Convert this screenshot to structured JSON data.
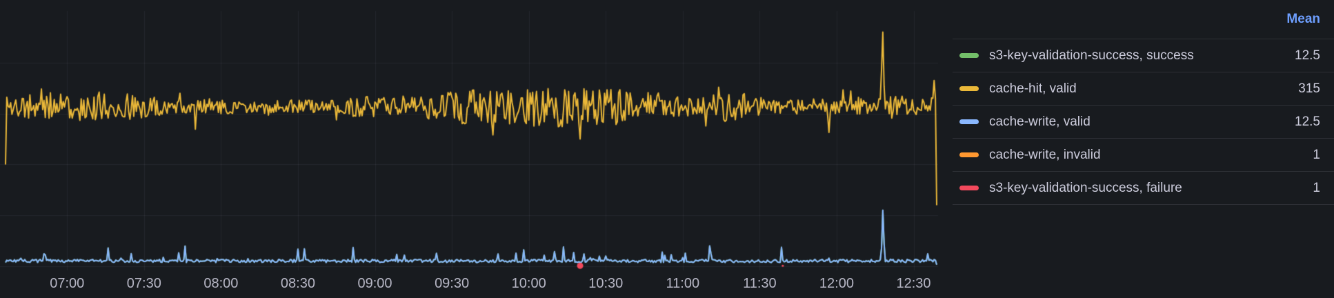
{
  "panel": {
    "background": "#181B1F",
    "grid_color": "rgba(204,204,220,0.07)",
    "axis_text_color": "rgba(204,204,220,0.88)"
  },
  "legend": {
    "mean_header": "Mean",
    "header_color": "#6E9FFF",
    "rows": [
      {
        "label": "s3-key-validation-success, success",
        "mean": "12.5",
        "color": "#73BF69"
      },
      {
        "label": "cache-hit, valid",
        "mean": "315",
        "color": "#EAB839"
      },
      {
        "label": "cache-write, valid",
        "mean": "12.5",
        "color": "#8AB8FF"
      },
      {
        "label": "cache-write, invalid",
        "mean": "1",
        "color": "#FF9830"
      },
      {
        "label": "s3-key-validation-success, failure",
        "mean": "1",
        "color": "#F2495C"
      }
    ]
  },
  "chart_data": {
    "type": "line",
    "title": "",
    "legend_position": "right",
    "x_axis": {
      "start": "06:36",
      "end": "12:39",
      "tick_interval_minutes": 30,
      "ticks": [
        "07:00",
        "07:30",
        "08:00",
        "08:30",
        "09:00",
        "09:30",
        "10:00",
        "10:30",
        "11:00",
        "11:30",
        "12:00",
        "12:30"
      ]
    },
    "y_axis": {
      "min": 0,
      "max": 500,
      "gridline_values": [
        0,
        100,
        200,
        300,
        400
      ],
      "labels_visible": false
    },
    "sample_step_minutes": 0.5,
    "series": [
      {
        "name": "s3-key-validation-success, success",
        "color": "#73BF69",
        "render": "line",
        "mean": 12.5,
        "base": 10.5,
        "noise": 6,
        "seed": 7,
        "spike_chance": 0.06,
        "spike_max": 18,
        "rare_spike_chance": 0.012,
        "rare_spike_max": 15,
        "events": [
          {
            "time": "12:18",
            "value": 110
          }
        ],
        "end_value": 3,
        "hidden_behind": "cache-write, valid"
      },
      {
        "name": "cache-hit, valid",
        "color": "#EAB839",
        "render": "line",
        "mean": 315,
        "base": 313,
        "noise_env_min": 13,
        "noise_env_max": 40,
        "seed": 11,
        "start_value": 200,
        "events": [
          {
            "time": "09:46",
            "value": 258
          },
          {
            "time": "10:20",
            "value": 250
          },
          {
            "time": "12:18",
            "value": 460
          }
        ],
        "end_values": [
          330,
          365,
          330,
          120
        ]
      },
      {
        "name": "cache-write, valid",
        "color": "#8AB8FF",
        "render": "line",
        "mean": 12.5,
        "base": 10.5,
        "noise": 6,
        "seed": 7,
        "spike_chance": 0.06,
        "spike_max": 18,
        "rare_spike_chance": 0.012,
        "rare_spike_max": 15,
        "events": [
          {
            "time": "12:18",
            "value": 110
          }
        ],
        "end_value": 3
      },
      {
        "name": "cache-write, invalid",
        "color": "#FF9830",
        "render": "points",
        "mean": 1,
        "points": []
      },
      {
        "name": "s3-key-validation-success, failure",
        "color": "#F2495C",
        "render": "points",
        "mean": 1,
        "points": [
          {
            "time": "10:20",
            "value": 1,
            "radius": 4.5
          },
          {
            "time": "11:39",
            "value": 1,
            "radius": 1.6
          }
        ]
      }
    ]
  }
}
